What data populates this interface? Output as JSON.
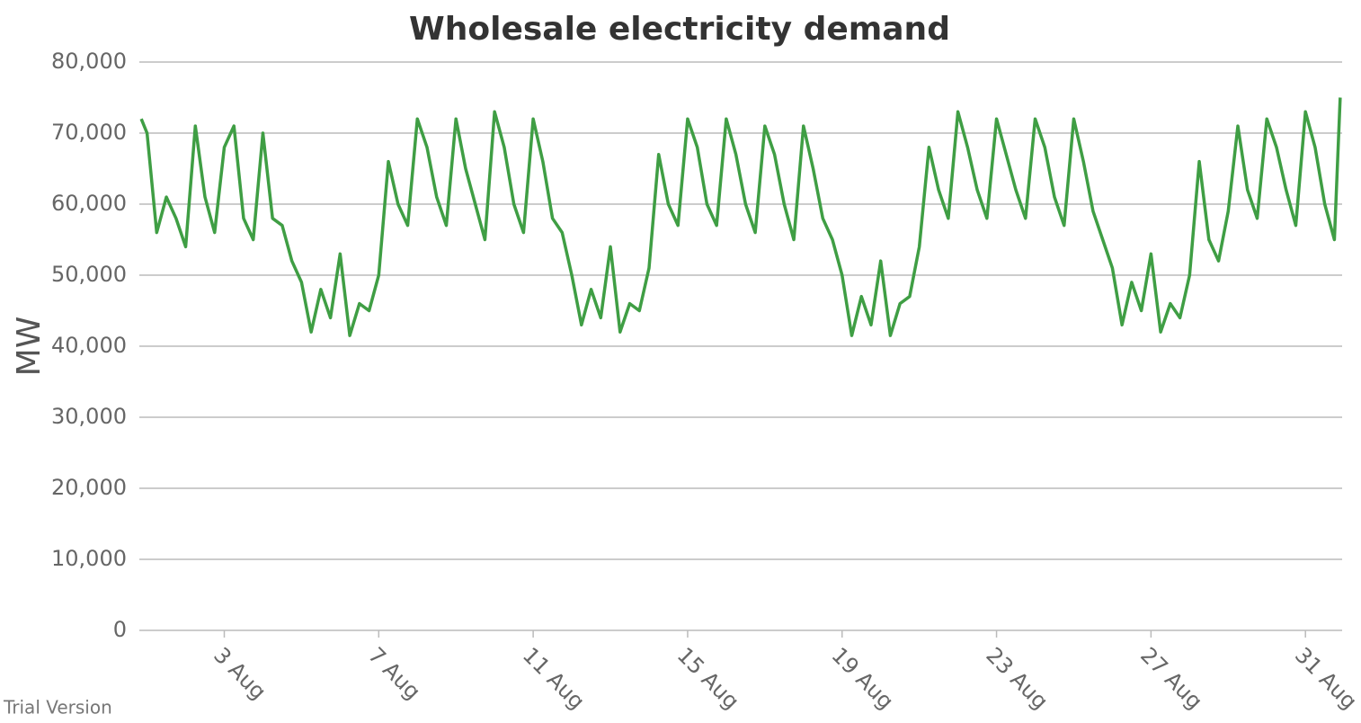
{
  "chart_data": {
    "type": "line",
    "title": "Wholesale electricity demand",
    "y_label": "MW",
    "watermark": "Trial Version",
    "x": [
      0.85,
      1,
      1.25,
      1.5,
      1.75,
      2,
      2.25,
      2.5,
      2.75,
      3,
      3.25,
      3.5,
      3.75,
      4,
      4.25,
      4.5,
      4.75,
      5,
      5.25,
      5.5,
      5.75,
      6,
      6.25,
      6.5,
      6.75,
      7,
      7.25,
      7.5,
      7.75,
      8,
      8.25,
      8.5,
      8.75,
      9,
      9.25,
      9.5,
      9.75,
      10,
      10.25,
      10.5,
      10.75,
      11,
      11.25,
      11.5,
      11.75,
      12,
      12.25,
      12.5,
      12.75,
      13,
      13.25,
      13.5,
      13.75,
      14,
      14.25,
      14.5,
      14.75,
      15,
      15.25,
      15.5,
      15.75,
      16,
      16.25,
      16.5,
      16.75,
      17,
      17.25,
      17.5,
      17.75,
      18,
      18.25,
      18.5,
      18.75,
      19,
      19.25,
      19.5,
      19.75,
      20,
      20.25,
      20.5,
      20.75,
      21,
      21.25,
      21.5,
      21.75,
      22,
      22.25,
      22.5,
      22.75,
      23,
      23.25,
      23.5,
      23.75,
      24,
      24.25,
      24.5,
      24.75,
      25,
      25.25,
      25.5,
      25.75,
      26,
      26.25,
      26.5,
      26.75,
      27,
      27.25,
      27.5,
      27.75,
      28,
      28.25,
      28.5,
      28.75,
      29,
      29.25,
      29.5,
      29.75,
      30,
      30.25,
      30.5,
      30.75,
      31,
      31.25,
      31.5,
      31.75,
      31.9
    ],
    "series": [
      {
        "name": "Demand",
        "color": "#3f9e44",
        "values": [
          72000,
          70000,
          56000,
          61000,
          58000,
          54000,
          71000,
          61000,
          56000,
          68000,
          71000,
          58000,
          55000,
          70000,
          58000,
          57000,
          52000,
          49000,
          42000,
          48000,
          44000,
          53000,
          41500,
          46000,
          45000,
          50000,
          66000,
          60000,
          57000,
          72000,
          68000,
          61000,
          57000,
          72000,
          65000,
          60000,
          55000,
          73000,
          68000,
          60000,
          56000,
          72000,
          66000,
          58000,
          56000,
          50000,
          43000,
          48000,
          44000,
          54000,
          42000,
          46000,
          45000,
          51000,
          67000,
          60000,
          57000,
          72000,
          68000,
          60000,
          57000,
          72000,
          67000,
          60000,
          56000,
          71000,
          67000,
          60000,
          55000,
          71000,
          65000,
          58000,
          55000,
          50000,
          41500,
          47000,
          43000,
          52000,
          41500,
          46000,
          47000,
          54000,
          68000,
          62000,
          58000,
          73000,
          68000,
          62000,
          58000,
          72000,
          67000,
          62000,
          58000,
          72000,
          68000,
          61000,
          57000,
          72000,
          66000,
          59000,
          55000,
          51000,
          43000,
          49000,
          45000,
          53000,
          42000,
          46000,
          44000,
          50000,
          66000,
          55000,
          52000,
          59000,
          71000,
          62000,
          58000,
          72000,
          68000,
          62000,
          57000,
          73000,
          68000,
          60000,
          55000,
          75000
        ]
      }
    ],
    "xlim": [
      0.8,
      31.95
    ],
    "xticks": [
      {
        "value": 3,
        "label": "3 Aug"
      },
      {
        "value": 7,
        "label": "7 Aug"
      },
      {
        "value": 11,
        "label": "11 Aug"
      },
      {
        "value": 15,
        "label": "15 Aug"
      },
      {
        "value": 19,
        "label": "19 Aug"
      },
      {
        "value": 23,
        "label": "23 Aug"
      },
      {
        "value": 27,
        "label": "27 Aug"
      },
      {
        "value": 31,
        "label": "31 Aug"
      }
    ],
    "ylim": [
      0,
      80000
    ],
    "yticks": [
      0,
      {
        "value": 10000,
        "label": "10,000"
      },
      {
        "value": 20000,
        "label": "20,000"
      },
      {
        "value": 30000,
        "label": "30,000"
      },
      {
        "value": 40000,
        "label": "40,000"
      },
      {
        "value": 50000,
        "label": "50,000"
      },
      {
        "value": 60000,
        "label": "60,000"
      },
      {
        "value": 70000,
        "label": "70,000"
      },
      {
        "value": 80000,
        "label": "80,000"
      }
    ],
    "grid": true
  }
}
